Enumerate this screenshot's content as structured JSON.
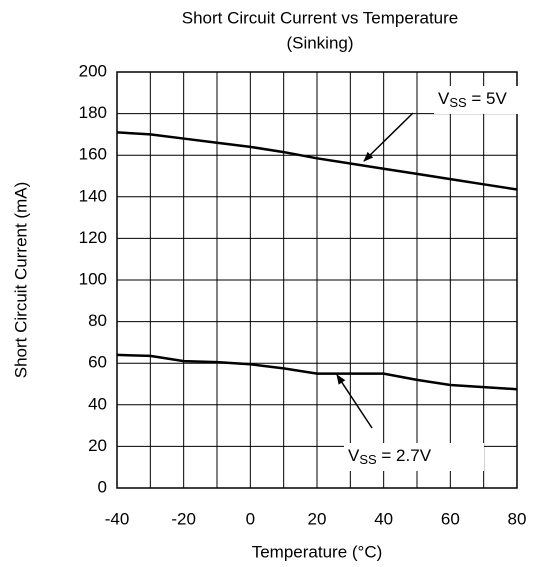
{
  "chart_data": {
    "type": "line",
    "title": "Short Circuit Current vs Temperature",
    "subtitle": "(Sinking)",
    "xlabel": "Temperature (°C)",
    "ylabel": "Short Circuit Current (mA)",
    "x": [
      -40,
      -30,
      -20,
      -10,
      0,
      10,
      20,
      30,
      40,
      50,
      60,
      70,
      80
    ],
    "series": [
      {
        "name": "VSS = 5V",
        "color": "#000000",
        "values": [
          171,
          170,
          168,
          166,
          164,
          161.5,
          158.5,
          156,
          153.5,
          151,
          148.5,
          146,
          143.5
        ]
      },
      {
        "name": "VSS = 2.7V",
        "color": "#000000",
        "values": [
          64,
          63.5,
          61,
          60.5,
          59.5,
          57.5,
          55,
          55,
          55,
          52,
          49.5,
          48.5,
          47.5
        ]
      }
    ],
    "annotations": [
      {
        "prefix": "V",
        "subscript": "SS",
        "suffix": " = 5V"
      },
      {
        "prefix": "V",
        "subscript": "SS",
        "suffix": " = 2.7V"
      }
    ],
    "xlim": [
      -40,
      80
    ],
    "xticks": [
      -40,
      -20,
      0,
      20,
      40,
      60,
      80
    ],
    "xminor": [
      -30,
      -10,
      10,
      30,
      50,
      70
    ],
    "ylim": [
      0,
      200
    ],
    "yticks": [
      0,
      20,
      40,
      60,
      80,
      100,
      120,
      140,
      160,
      180,
      200
    ],
    "grid": true
  }
}
